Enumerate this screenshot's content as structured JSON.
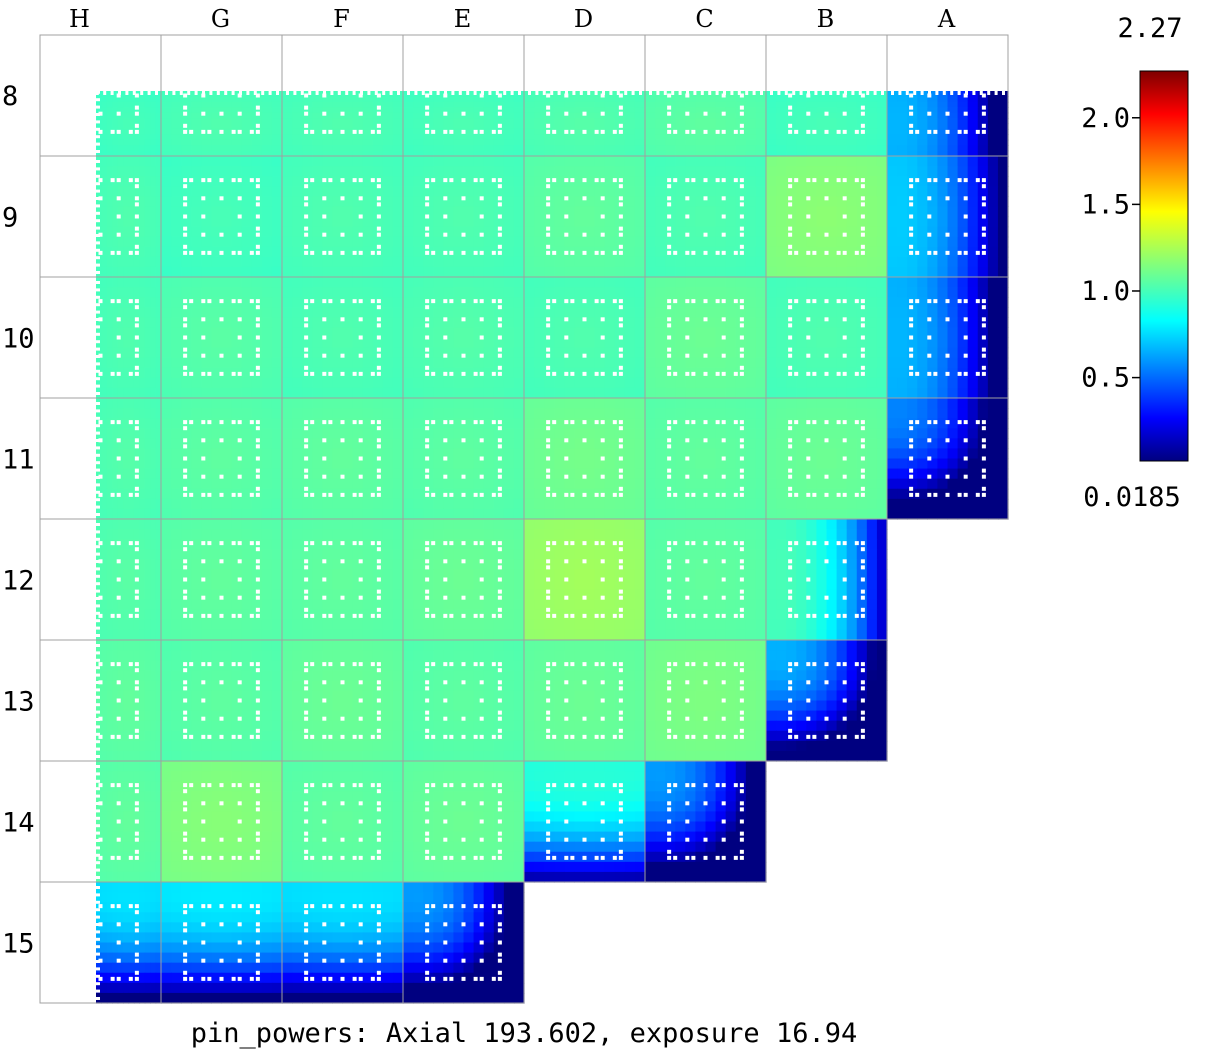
{
  "chart_data": {
    "type": "heatmap",
    "title": "pin_powers: Axial 193.602, exposure 16.94",
    "columns": [
      "H",
      "G",
      "F",
      "E",
      "D",
      "C",
      "B",
      "A"
    ],
    "rows": [
      "8",
      "9",
      "10",
      "11",
      "12",
      "13",
      "14",
      "15"
    ],
    "assembly_mean_values": [
      [
        1.0,
        1.02,
        1.02,
        1.01,
        1.03,
        1.05,
        1.0,
        0.7
      ],
      [
        1.02,
        1.0,
        1.02,
        1.02,
        1.06,
        1.02,
        1.15,
        0.75
      ],
      [
        1.02,
        1.04,
        1.02,
        1.03,
        1.02,
        1.08,
        1.02,
        0.7
      ],
      [
        1.03,
        1.05,
        1.06,
        1.05,
        1.1,
        1.06,
        1.08,
        0.6
      ],
      [
        1.04,
        1.06,
        1.06,
        1.08,
        1.2,
        1.06,
        1.02,
        null
      ],
      [
        1.06,
        1.05,
        1.08,
        1.05,
        1.08,
        1.12,
        0.7,
        null
      ],
      [
        1.06,
        1.14,
        1.06,
        1.08,
        0.95,
        0.65,
        null,
        null
      ],
      [
        0.8,
        0.82,
        0.8,
        0.65,
        null,
        null,
        null,
        null
      ]
    ],
    "colorbar": {
      "min": 0.0185,
      "max": 2.27,
      "min_label": "0.0185",
      "max_label": "2.27",
      "ticks": [
        {
          "value": 0.5,
          "label": "0.5"
        },
        {
          "value": 1.0,
          "label": "1.0"
        },
        {
          "value": 1.5,
          "label": "1.5"
        },
        {
          "value": 2.0,
          "label": "2.0"
        }
      ],
      "colormap": "jet"
    }
  },
  "colors": {
    "grid": "#a0a0a0",
    "pin_hole": "#ffffff"
  }
}
